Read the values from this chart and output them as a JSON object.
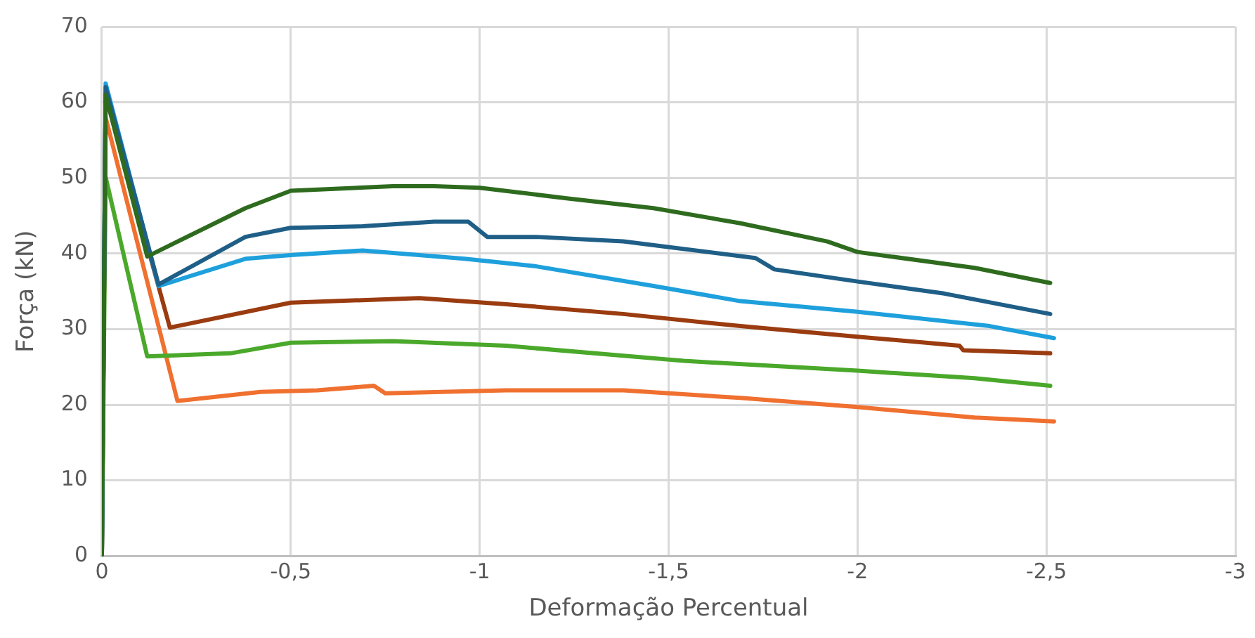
{
  "chart_data": {
    "type": "line",
    "xlabel": "Deformação Percentual",
    "ylabel": "Força (kN)",
    "xlim": [
      0,
      -3
    ],
    "ylim": [
      0,
      70
    ],
    "xticks": [
      0,
      {
        "value": -0.5,
        "label": "-0,5"
      },
      -1,
      {
        "value": -1.5,
        "label": "-1,5"
      },
      -2,
      {
        "value": -2.5,
        "label": "-2,5"
      },
      -3
    ],
    "yticks": [
      0,
      10,
      20,
      30,
      40,
      50,
      60,
      70
    ],
    "grid": true,
    "legend": false,
    "marker": "none",
    "line_style": "solid",
    "series": [
      {
        "color": "#2e6b1e",
        "x": [
          0,
          -0.01,
          -0.12,
          -0.38,
          -0.5,
          -0.77,
          -0.88,
          -1.0,
          -1.23,
          -1.46,
          -1.69,
          -1.92,
          -2.0,
          -2.31,
          -2.51
        ],
        "values": [
          0,
          61,
          39.6,
          46,
          48.3,
          48.9,
          48.9,
          48.7,
          47.3,
          46,
          44,
          41.6,
          40.2,
          38.1,
          36.1
        ]
      },
      {
        "color": "#1f5f87",
        "x": [
          0,
          -0.01,
          -0.15,
          -0.38,
          -0.5,
          -0.69,
          -0.88,
          -0.97,
          -1.02,
          -1.15,
          -1.38,
          -1.73,
          -1.78,
          -2.0,
          -2.23,
          -2.51
        ],
        "values": [
          0,
          62,
          35.9,
          42.2,
          43.4,
          43.6,
          44.2,
          44.2,
          42.2,
          42.2,
          41.6,
          39.4,
          37.9,
          36.3,
          34.7,
          32
        ]
      },
      {
        "color": "#1ea0dc",
        "x": [
          0,
          -0.01,
          -0.15,
          -0.38,
          -0.5,
          -0.69,
          -0.96,
          -1.15,
          -1.46,
          -1.69,
          -2.0,
          -2.35,
          -2.52
        ],
        "values": [
          0,
          62.5,
          35.7,
          39.3,
          39.8,
          40.4,
          39.3,
          38.3,
          35.7,
          33.7,
          32.3,
          30.4,
          28.8
        ]
      },
      {
        "color": "#9a3b10",
        "x": [
          0,
          -0.01,
          -0.18,
          -0.5,
          -0.84,
          -1.07,
          -1.38,
          -1.69,
          -2.0,
          -2.27,
          -2.28,
          -2.51
        ],
        "values": [
          0,
          61,
          30.2,
          33.5,
          34.1,
          33.3,
          32,
          30.4,
          29,
          27.8,
          27.2,
          26.8
        ]
      },
      {
        "color": "#4aa82a",
        "x": [
          0,
          -0.01,
          -0.12,
          -0.34,
          -0.5,
          -0.77,
          -1.07,
          -1.54,
          -2.0,
          -2.31,
          -2.51
        ],
        "values": [
          0,
          50.1,
          26.4,
          26.8,
          28.2,
          28.4,
          27.8,
          25.8,
          24.5,
          23.5,
          22.5
        ]
      },
      {
        "color": "#f07030",
        "x": [
          0,
          -0.01,
          -0.2,
          -0.42,
          -0.57,
          -0.72,
          -0.75,
          -1.07,
          -1.38,
          -1.69,
          -2.0,
          -2.31,
          -2.52
        ],
        "values": [
          0,
          58,
          20.5,
          21.7,
          21.9,
          22.5,
          21.5,
          21.9,
          21.9,
          20.9,
          19.7,
          18.3,
          17.8
        ]
      }
    ]
  }
}
